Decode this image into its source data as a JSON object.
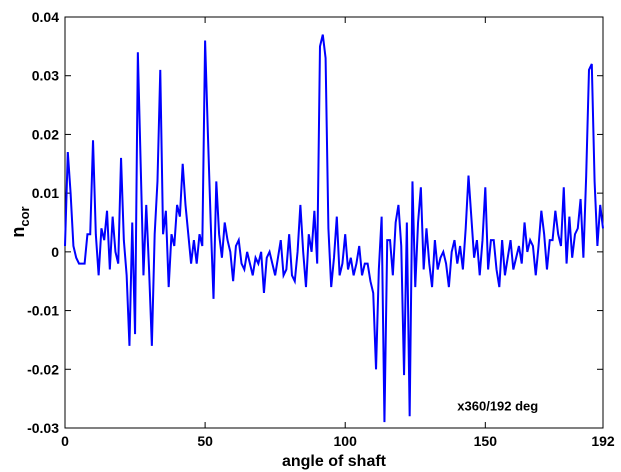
{
  "chart_data": {
    "type": "line",
    "xlabel": "angle of shaft",
    "ylabel": "n",
    "ylabel_sub": "cor",
    "annotation": "x360/192 deg",
    "annotation_pos": [
      140,
      -0.027
    ],
    "xlim": [
      0,
      192
    ],
    "xticks": [
      0,
      50,
      100,
      150,
      192
    ],
    "ylim": [
      -0.03,
      0.04
    ],
    "yticks": [
      -0.03,
      -0.02,
      -0.01,
      0,
      0.01,
      0.02,
      0.03,
      0.04
    ],
    "grid": false,
    "series": [
      {
        "color": "#0000ff",
        "x": [
          0,
          1,
          2,
          3,
          4,
          5,
          6,
          7,
          8,
          9,
          10,
          11,
          12,
          13,
          14,
          15,
          16,
          17,
          18,
          19,
          20,
          21,
          22,
          23,
          24,
          25,
          26,
          27,
          28,
          29,
          30,
          31,
          32,
          33,
          34,
          35,
          36,
          37,
          38,
          39,
          40,
          41,
          42,
          43,
          44,
          45,
          46,
          47,
          48,
          49,
          50,
          51,
          52,
          53,
          54,
          55,
          56,
          57,
          58,
          59,
          60,
          61,
          62,
          63,
          64,
          65,
          66,
          67,
          68,
          69,
          70,
          71,
          72,
          73,
          74,
          75,
          76,
          77,
          78,
          79,
          80,
          81,
          82,
          83,
          84,
          85,
          86,
          87,
          88,
          89,
          90,
          91,
          92,
          93,
          94,
          95,
          96,
          97,
          98,
          99,
          100,
          101,
          102,
          103,
          104,
          105,
          106,
          107,
          108,
          109,
          110,
          111,
          112,
          113,
          114,
          115,
          116,
          117,
          118,
          119,
          120,
          121,
          122,
          123,
          124,
          125,
          126,
          127,
          128,
          129,
          130,
          131,
          132,
          133,
          134,
          135,
          136,
          137,
          138,
          139,
          140,
          141,
          142,
          143,
          144,
          145,
          146,
          147,
          148,
          149,
          150,
          151,
          152,
          153,
          154,
          155,
          156,
          157,
          158,
          159,
          160,
          161,
          162,
          163,
          164,
          165,
          166,
          167,
          168,
          169,
          170,
          171,
          172,
          173,
          174,
          175,
          176,
          177,
          178,
          179,
          180,
          181,
          182,
          183,
          184,
          185,
          186,
          187,
          188,
          189,
          190,
          191,
          192
        ],
        "values": [
          0.001,
          0.017,
          0.01,
          0.001,
          -0.001,
          -0.002,
          -0.002,
          -0.002,
          0.003,
          0.003,
          0.019,
          0.003,
          -0.004,
          0.004,
          0.002,
          0.007,
          -0.003,
          0.006,
          0,
          -0.002,
          0.016,
          0.002,
          -0.004,
          -0.016,
          0.005,
          -0.014,
          0.034,
          0.015,
          -0.004,
          0.008,
          -0.003,
          -0.016,
          0.003,
          0.012,
          0.031,
          0.003,
          0.007,
          -0.006,
          0.003,
          0.001,
          0.008,
          0.006,
          0.015,
          0.008,
          0.003,
          -0.002,
          0.002,
          -0.002,
          0.003,
          0.001,
          0.036,
          0.02,
          0.005,
          -0.008,
          0.012,
          0.003,
          -0.001,
          0.005,
          0.002,
          0,
          -0.005,
          0.001,
          0.002,
          -0.002,
          -0.003,
          0,
          -0.002,
          -0.004,
          -0.001,
          -0.002,
          0,
          -0.007,
          -0.001,
          0,
          -0.002,
          -0.004,
          -0.001,
          0.002,
          -0.004,
          -0.003,
          0.003,
          -0.004,
          -0.005,
          0,
          0.008,
          0,
          -0.006,
          0.003,
          0,
          0.007,
          -0.002,
          0.035,
          0.037,
          0.033,
          0.004,
          -0.006,
          -0.001,
          0.006,
          -0.004,
          -0.002,
          0.003,
          -0.003,
          -0.001,
          -0.004,
          -0.002,
          0.001,
          -0.004,
          -0.002,
          -0.002,
          -0.005,
          -0.007,
          -0.02,
          -0.003,
          0.006,
          -0.029,
          0.002,
          0.002,
          -0.004,
          0.005,
          0.008,
          0.001,
          -0.021,
          0.005,
          -0.028,
          0.012,
          -0.006,
          0.005,
          0.011,
          -0.003,
          0.004,
          -0.002,
          -0.006,
          0.002,
          -0.003,
          -0.001,
          0,
          -0.002,
          -0.006,
          0,
          0.002,
          -0.002,
          0.001,
          -0.003,
          0.004,
          0.013,
          0.006,
          -0.001,
          0.002,
          -0.004,
          0.002,
          0.011,
          -0.003,
          0.002,
          0.002,
          -0.003,
          -0.006,
          0.002,
          -0.004,
          -0.001,
          0.002,
          -0.003,
          -0.001,
          0.001,
          -0.002,
          0.005,
          0,
          0.002,
          0.001,
          -0.004,
          0.001,
          0.007,
          0.003,
          -0.003,
          0.002,
          0.002,
          0.007,
          0.003,
          0.001,
          0.011,
          -0.002,
          0.006,
          -0.001,
          0.003,
          0.004,
          0.009,
          -0.001,
          0.013,
          0.031,
          0.032,
          0.012,
          0.001,
          0.008,
          0.004
        ]
      }
    ]
  }
}
